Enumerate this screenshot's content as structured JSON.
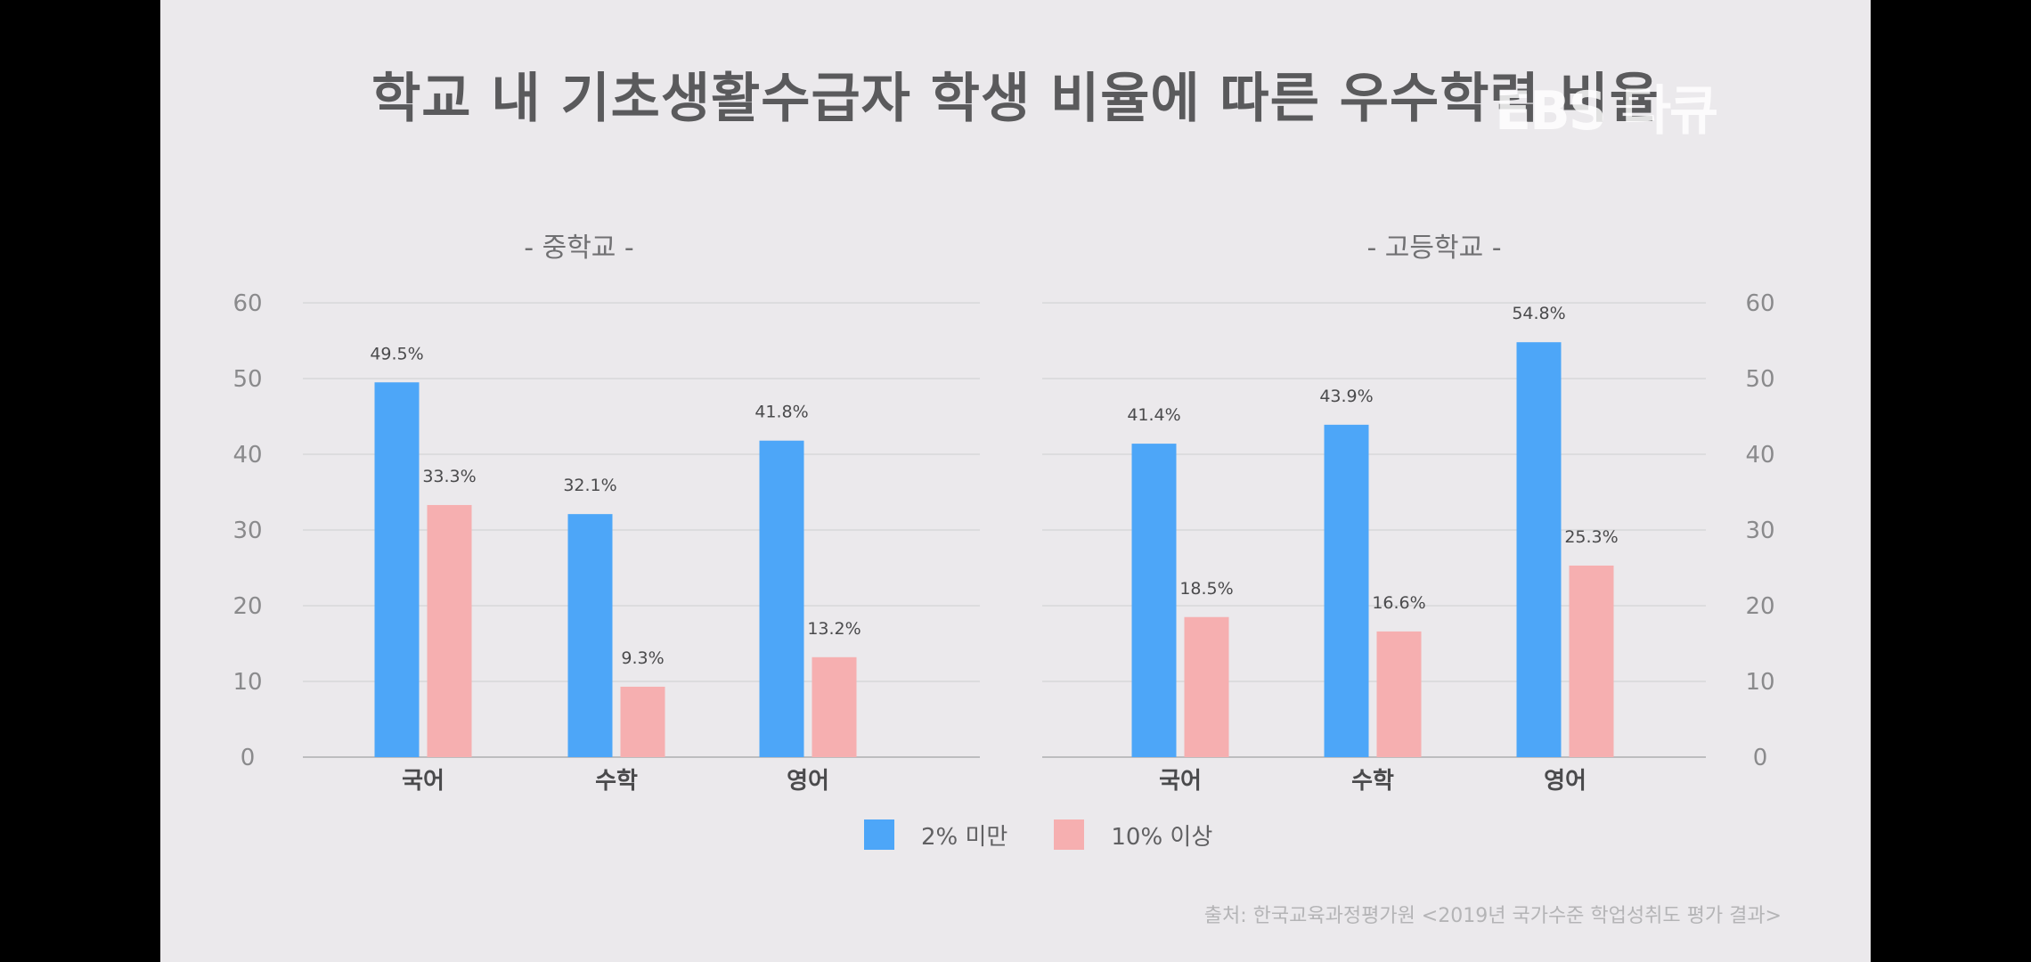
{
  "title": "학교 내 기초생활수급자 학생 비율에 따른 우수학력 비율",
  "watermark": "EBS 다큐",
  "legend": [
    {
      "label": "2% 미만",
      "color": "#4da6f8"
    },
    {
      "label": "10% 이상",
      "color": "#f6afb0"
    }
  ],
  "source": "출처: 한국교육과정평가원 <2019년 국가수준 학업성취도 평가 결과>",
  "chart_data": [
    {
      "type": "bar",
      "title": "- 중학교 -",
      "categories": [
        "국어",
        "수학",
        "영어"
      ],
      "series": [
        {
          "name": "2% 미만",
          "values": [
            49.5,
            32.1,
            41.8
          ],
          "labels": [
            "49.5%",
            "32.1%",
            "41.8%"
          ],
          "color": "#4da6f8"
        },
        {
          "name": "10% 이상",
          "values": [
            33.3,
            9.3,
            13.2
          ],
          "labels": [
            "33.3%",
            "9.3%",
            "13.2%"
          ],
          "color": "#f6afb0"
        }
      ],
      "ylim": [
        0,
        60
      ],
      "yticks": [
        0,
        10,
        20,
        30,
        40,
        50,
        60
      ],
      "axis_side": "left",
      "grid": true
    },
    {
      "type": "bar",
      "title": "- 고등학교 -",
      "categories": [
        "국어",
        "수학",
        "영어"
      ],
      "series": [
        {
          "name": "2% 미만",
          "values": [
            41.4,
            43.9,
            54.8
          ],
          "labels": [
            "41.4%",
            "43.9%",
            "54.8%"
          ],
          "color": "#4da6f8"
        },
        {
          "name": "10% 이상",
          "values": [
            18.5,
            16.6,
            25.3
          ],
          "labels": [
            "18.5%",
            "16.6%",
            "25.3%"
          ],
          "color": "#f6afb0"
        }
      ],
      "ylim": [
        0,
        60
      ],
      "yticks": [
        0,
        10,
        20,
        30,
        40,
        50,
        60
      ],
      "axis_side": "right",
      "grid": true
    }
  ]
}
